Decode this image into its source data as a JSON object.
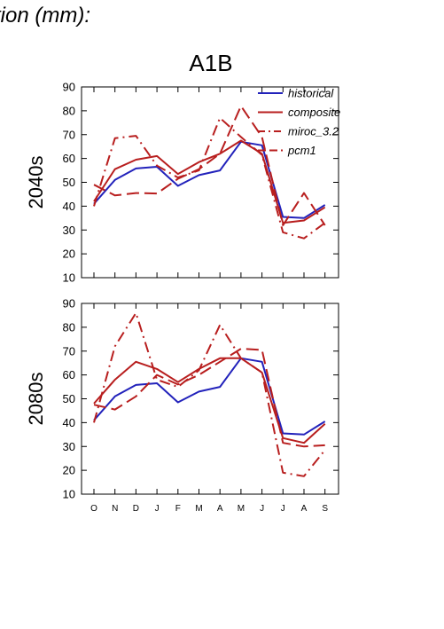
{
  "figure_title": "tion (mm):",
  "scenario": "A1B",
  "colors": {
    "historical": "#2222bb",
    "model": "#b81e1e"
  },
  "chart_data": [
    {
      "type": "line",
      "ylabel": "2040s",
      "ylim": [
        10,
        90
      ],
      "yticks": [
        10,
        20,
        30,
        40,
        50,
        60,
        70,
        80,
        90
      ],
      "categories": [
        "O",
        "N",
        "D",
        "J",
        "F",
        "M",
        "A",
        "M",
        "J",
        "J",
        "A",
        "S"
      ],
      "legend": "top-right",
      "series": [
        {
          "name": "historical",
          "style": "solid",
          "values": [
            41,
            51,
            55.8,
            56.5,
            48.5,
            53,
            55,
            67,
            65.5,
            35.5,
            35,
            40.5
          ]
        },
        {
          "name": "composite",
          "style": "solid",
          "values": [
            42,
            55.5,
            59.5,
            61,
            53.5,
            58.5,
            62,
            67.5,
            62,
            33,
            34,
            39.5
          ]
        },
        {
          "name": "miroc_3.2",
          "style": "dashdot",
          "values": [
            40,
            68.5,
            69.5,
            57,
            52,
            55,
            77,
            69,
            61.5,
            29,
            26.5,
            33
          ]
        },
        {
          "name": "pcm1",
          "style": "longdash",
          "values": [
            49,
            44.5,
            45.5,
            45.3,
            51.5,
            55.5,
            62,
            82,
            69,
            32,
            45.5,
            32
          ]
        }
      ]
    },
    {
      "type": "line",
      "ylabel": "2080s",
      "ylim": [
        10,
        90
      ],
      "yticks": [
        10,
        20,
        30,
        40,
        50,
        60,
        70,
        80,
        90
      ],
      "categories": [
        "O",
        "N",
        "D",
        "J",
        "F",
        "M",
        "A",
        "M",
        "J",
        "J",
        "A",
        "S"
      ],
      "series": [
        {
          "name": "historical",
          "style": "solid",
          "values": [
            41,
            51,
            55.8,
            56.5,
            48.5,
            53,
            55,
            67,
            65.5,
            35.5,
            35,
            40.5
          ]
        },
        {
          "name": "composite",
          "style": "solid",
          "values": [
            48,
            58,
            65.5,
            62.5,
            57,
            62.5,
            67,
            67,
            61,
            33.5,
            31.5,
            39.5
          ]
        },
        {
          "name": "miroc_3.2",
          "style": "dashdot",
          "values": [
            40,
            72,
            86,
            58,
            55,
            62,
            81,
            67,
            61,
            19,
            17.5,
            28.5
          ]
        },
        {
          "name": "pcm1",
          "style": "longdash",
          "values": [
            47.5,
            45.5,
            51,
            60,
            56,
            60,
            65.5,
            71,
            70.5,
            31.5,
            30,
            30.5
          ]
        }
      ]
    }
  ]
}
